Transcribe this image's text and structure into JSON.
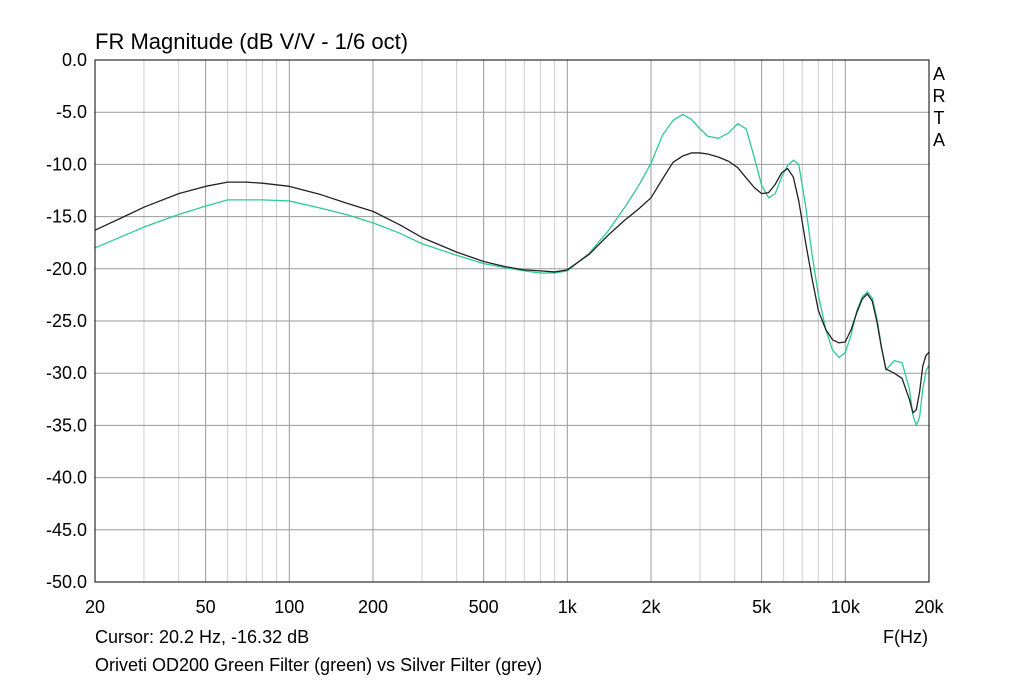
{
  "chart_data": {
    "type": "line",
    "title": "FR Magnitude (dB V/V - 1/6 oct)",
    "xlabel": "F(Hz)",
    "ylabel": "",
    "x_scale": "log",
    "xlim": [
      20,
      20000
    ],
    "ylim": [
      -50,
      0
    ],
    "x_ticks": [
      {
        "value": 20,
        "label": "20"
      },
      {
        "value": 50,
        "label": "50"
      },
      {
        "value": 100,
        "label": "100"
      },
      {
        "value": 200,
        "label": "200"
      },
      {
        "value": 500,
        "label": "500"
      },
      {
        "value": 1000,
        "label": "1k"
      },
      {
        "value": 2000,
        "label": "2k"
      },
      {
        "value": 5000,
        "label": "5k"
      },
      {
        "value": 10000,
        "label": "10k"
      },
      {
        "value": 20000,
        "label": "20k"
      }
    ],
    "y_ticks": [
      0,
      -5,
      -10,
      -15,
      -20,
      -25,
      -30,
      -35,
      -40,
      -45,
      -50
    ],
    "y_tick_labels": [
      "0.0",
      "-5.0",
      "-10.0",
      "-15.0",
      "-20.0",
      "-25.0",
      "-30.0",
      "-35.0",
      "-40.0",
      "-45.0",
      "-50.0"
    ],
    "grid": true,
    "watermark": "ARTA",
    "cursor_text": "Cursor: 20.2 Hz, -16.32 dB",
    "caption": "Oriveti OD200 Green Filter (green) vs Silver Filter (grey)",
    "series": [
      {
        "color": "#2ec99a",
        "x": [
          20,
          25,
          30,
          40,
          50,
          60,
          70,
          80,
          100,
          130,
          160,
          200,
          250,
          300,
          400,
          500,
          600,
          700,
          800,
          900,
          1000,
          1200,
          1400,
          1600,
          1800,
          2000,
          2200,
          2400,
          2600,
          2800,
          3000,
          3200,
          3500,
          3800,
          4100,
          4400,
          4700,
          5000,
          5300,
          5600,
          5900,
          6200,
          6500,
          6800,
          7200,
          7600,
          8000,
          8500,
          9000,
          9500,
          10000,
          10500,
          11000,
          11500,
          12000,
          12500,
          13000,
          13500,
          14000,
          15000,
          16000,
          17000,
          17500,
          18000,
          18500,
          19000,
          19500,
          20000
        ],
        "y": [
          -18.0,
          -16.9,
          -16.0,
          -14.8,
          -14.0,
          -13.4,
          -13.4,
          -13.4,
          -13.5,
          -14.2,
          -14.8,
          -15.6,
          -16.6,
          -17.6,
          -18.7,
          -19.5,
          -19.9,
          -20.2,
          -20.4,
          -20.4,
          -20.2,
          -18.5,
          -16.4,
          -14.2,
          -12.1,
          -9.9,
          -7.2,
          -5.8,
          -5.2,
          -5.7,
          -6.6,
          -7.3,
          -7.5,
          -7.0,
          -6.1,
          -6.6,
          -9.3,
          -12.0,
          -13.2,
          -12.8,
          -11.2,
          -10.1,
          -9.6,
          -10.0,
          -14.0,
          -18.7,
          -22.5,
          -25.8,
          -27.8,
          -28.5,
          -28.0,
          -26.3,
          -24.0,
          -22.7,
          -22.2,
          -22.8,
          -24.8,
          -27.5,
          -29.7,
          -28.8,
          -29.0,
          -31.5,
          -34.0,
          -35.0,
          -34.2,
          -31.5,
          -29.8,
          -29.2
        ]
      },
      {
        "color": "#222222",
        "x": [
          20,
          25,
          30,
          40,
          50,
          60,
          70,
          80,
          100,
          130,
          160,
          200,
          250,
          300,
          400,
          500,
          600,
          700,
          800,
          900,
          1000,
          1200,
          1400,
          1600,
          1800,
          2000,
          2200,
          2400,
          2600,
          2800,
          3000,
          3200,
          3500,
          3800,
          4100,
          4400,
          4700,
          5000,
          5300,
          5600,
          5900,
          6200,
          6500,
          6800,
          7200,
          7600,
          8000,
          8500,
          9000,
          9500,
          10000,
          10500,
          11000,
          11500,
          12000,
          12500,
          13000,
          13500,
          14000,
          15000,
          16000,
          17000,
          17500,
          18000,
          18500,
          19000,
          19500,
          20000
        ],
        "y": [
          -16.3,
          -15.1,
          -14.1,
          -12.8,
          -12.1,
          -11.7,
          -11.7,
          -11.8,
          -12.1,
          -12.9,
          -13.7,
          -14.5,
          -15.8,
          -17.0,
          -18.4,
          -19.3,
          -19.8,
          -20.1,
          -20.2,
          -20.3,
          -20.1,
          -18.6,
          -16.8,
          -15.4,
          -14.3,
          -13.2,
          -11.4,
          -9.8,
          -9.2,
          -8.9,
          -8.9,
          -9.0,
          -9.3,
          -9.7,
          -10.3,
          -11.3,
          -12.2,
          -12.8,
          -12.7,
          -11.9,
          -10.8,
          -10.4,
          -11.2,
          -13.5,
          -17.5,
          -21.0,
          -24.0,
          -25.8,
          -26.8,
          -27.1,
          -27.0,
          -25.8,
          -24.2,
          -22.9,
          -22.4,
          -23.1,
          -25.1,
          -27.6,
          -29.6,
          -30.0,
          -30.5,
          -32.5,
          -33.8,
          -33.5,
          -31.8,
          -29.3,
          -28.3,
          -28.0
        ]
      }
    ]
  }
}
